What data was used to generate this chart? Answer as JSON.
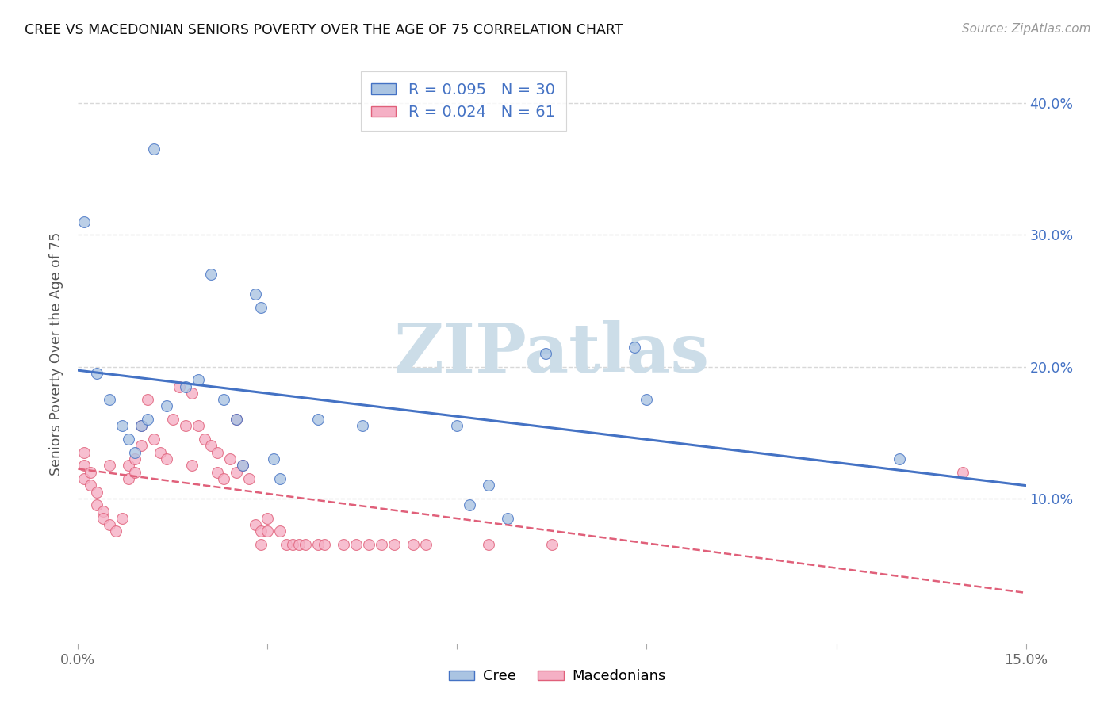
{
  "title": "CREE VS MACEDONIAN SENIORS POVERTY OVER THE AGE OF 75 CORRELATION CHART",
  "source": "Source: ZipAtlas.com",
  "ylabel": "Seniors Poverty Over the Age of 75",
  "xlim": [
    0.0,
    0.15
  ],
  "ylim": [
    -0.01,
    0.43
  ],
  "ytick_vals": [
    0.1,
    0.2,
    0.3,
    0.4
  ],
  "ytick_labels_right": [
    "10.0%",
    "20.0%",
    "30.0%",
    "40.0%"
  ],
  "cree_color": "#aac4e2",
  "cree_edge_color": "#4472c4",
  "cree_line_color": "#4472c4",
  "mac_color": "#f5b0c5",
  "mac_edge_color": "#e0607a",
  "mac_line_color": "#e0607a",
  "watermark": "ZIPatlas",
  "watermark_color": "#ccdde8",
  "background_color": "#ffffff",
  "grid_color": "#d8d8d8",
  "cree_x": [
    0.012,
    0.021,
    0.028,
    0.029,
    0.003,
    0.005,
    0.007,
    0.008,
    0.009,
    0.01,
    0.011,
    0.014,
    0.017,
    0.019,
    0.023,
    0.025,
    0.026,
    0.045,
    0.06,
    0.062,
    0.065,
    0.068,
    0.088,
    0.09,
    0.13,
    0.001,
    0.031,
    0.032,
    0.074,
    0.038
  ],
  "cree_y": [
    0.365,
    0.27,
    0.255,
    0.245,
    0.195,
    0.175,
    0.155,
    0.145,
    0.135,
    0.155,
    0.16,
    0.17,
    0.185,
    0.19,
    0.175,
    0.16,
    0.125,
    0.155,
    0.155,
    0.095,
    0.11,
    0.085,
    0.215,
    0.175,
    0.13,
    0.31,
    0.13,
    0.115,
    0.21,
    0.16
  ],
  "mac_x": [
    0.001,
    0.001,
    0.001,
    0.002,
    0.002,
    0.003,
    0.003,
    0.004,
    0.004,
    0.005,
    0.005,
    0.006,
    0.007,
    0.008,
    0.008,
    0.009,
    0.009,
    0.01,
    0.01,
    0.011,
    0.012,
    0.013,
    0.014,
    0.015,
    0.016,
    0.017,
    0.018,
    0.018,
    0.019,
    0.02,
    0.021,
    0.022,
    0.022,
    0.023,
    0.024,
    0.025,
    0.025,
    0.026,
    0.027,
    0.028,
    0.029,
    0.029,
    0.03,
    0.03,
    0.032,
    0.033,
    0.034,
    0.035,
    0.036,
    0.038,
    0.039,
    0.042,
    0.044,
    0.046,
    0.048,
    0.05,
    0.053,
    0.055,
    0.065,
    0.075,
    0.14
  ],
  "mac_y": [
    0.135,
    0.125,
    0.115,
    0.12,
    0.11,
    0.105,
    0.095,
    0.09,
    0.085,
    0.125,
    0.08,
    0.075,
    0.085,
    0.125,
    0.115,
    0.13,
    0.12,
    0.155,
    0.14,
    0.175,
    0.145,
    0.135,
    0.13,
    0.16,
    0.185,
    0.155,
    0.18,
    0.125,
    0.155,
    0.145,
    0.14,
    0.135,
    0.12,
    0.115,
    0.13,
    0.12,
    0.16,
    0.125,
    0.115,
    0.08,
    0.075,
    0.065,
    0.085,
    0.075,
    0.075,
    0.065,
    0.065,
    0.065,
    0.065,
    0.065,
    0.065,
    0.065,
    0.065,
    0.065,
    0.065,
    0.065,
    0.065,
    0.065,
    0.065,
    0.065,
    0.12
  ]
}
